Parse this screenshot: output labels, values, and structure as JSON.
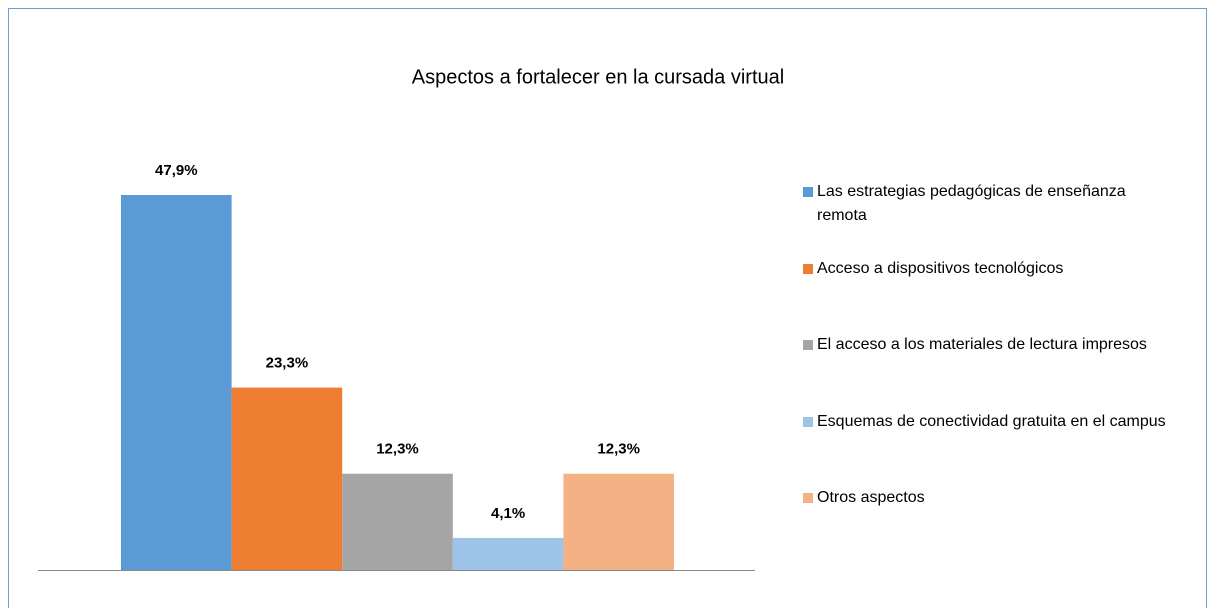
{
  "chart_data": {
    "type": "bar",
    "title": "Aspectos a fortalecer en la cursada virtual",
    "categories": [
      null
    ],
    "series": [
      {
        "name": "Las estrategias pedagógicas de enseñanza remota",
        "color": "#5b9bd5",
        "values": [
          47.9
        ],
        "value_labels": [
          "47,9%"
        ]
      },
      {
        "name": "Acceso a dispositivos tecnológicos",
        "color": "#ed7d31",
        "values": [
          23.3
        ],
        "value_labels": [
          "23,3%"
        ]
      },
      {
        "name": "El acceso a los materiales de lectura impresos",
        "color": "#a5a5a5",
        "values": [
          12.3
        ],
        "value_labels": [
          "12,3%"
        ]
      },
      {
        "name": "Esquemas de conectividad gratuita en el campus",
        "color": "#9dc3e6",
        "values": [
          4.1
        ],
        "value_labels": [
          "4,1%"
        ]
      },
      {
        "name": "Otros aspectos",
        "color": "#f4b183",
        "values": [
          12.3
        ],
        "value_labels": [
          "12,3%"
        ]
      }
    ],
    "legend": "right"
  }
}
